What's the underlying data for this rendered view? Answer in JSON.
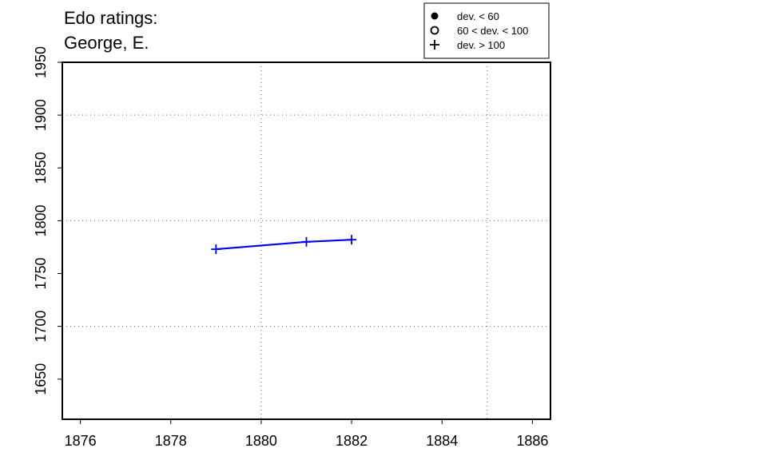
{
  "title_lines": [
    "Edo ratings:",
    "George, E."
  ],
  "chart_data": {
    "type": "line",
    "title": "Edo ratings: George, E.",
    "xlabel": "",
    "ylabel": "",
    "xlim": [
      1875.6,
      1886.4
    ],
    "ylim": [
      1612,
      1950
    ],
    "x_ticks": [
      1876,
      1878,
      1880,
      1882,
      1884,
      1886
    ],
    "y_ticks": [
      1650,
      1700,
      1750,
      1800,
      1850,
      1900,
      1950
    ],
    "grid_x": [
      1880,
      1885
    ],
    "grid_y": [
      1700,
      1800,
      1900
    ],
    "grid": "dotted",
    "legend_position": "top-right",
    "legend": [
      {
        "label": "dev. < 60",
        "marker": "filled-circle"
      },
      {
        "label": "60 < dev. < 100",
        "marker": "open-circle"
      },
      {
        "label": "dev. > 100",
        "marker": "plus"
      }
    ],
    "series": [
      {
        "color": "#0000ee",
        "marker": "plus",
        "x": [
          1879,
          1881,
          1882
        ],
        "y": [
          1773,
          1780,
          1782
        ]
      }
    ]
  }
}
